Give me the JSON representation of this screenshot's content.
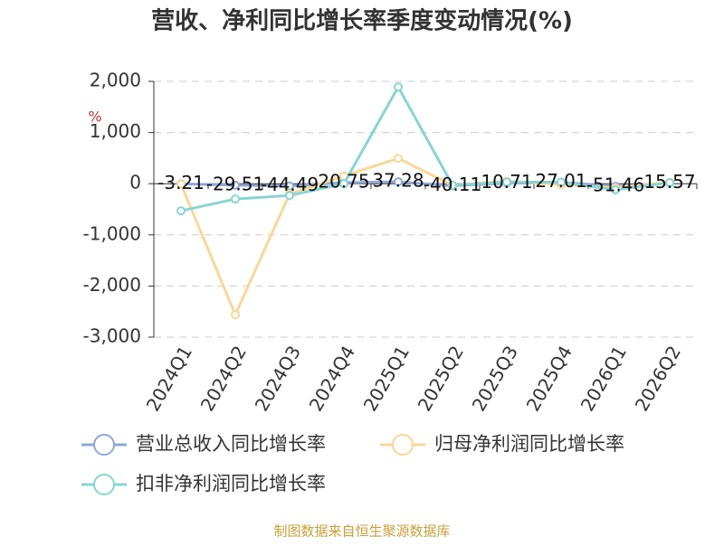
{
  "chart_data": {
    "type": "line",
    "title": "营收、净利同比增长率季度变动情况(%)",
    "y_unit": "%",
    "categories": [
      "2024Q1",
      "2024Q2",
      "2024Q3",
      "2024Q4",
      "2025Q1",
      "2025Q2",
      "2025Q3",
      "2025Q4",
      "2026Q1",
      "2026Q2"
    ],
    "series": [
      {
        "name": "营业总收入同比增长率",
        "color": "#8ea8d8",
        "show_labels": true,
        "values": [
          -3.21,
          -29.51,
          -44.49,
          20.75,
          37.28,
          -40.11,
          10.71,
          27.01,
          -51.46,
          15.57
        ]
      },
      {
        "name": "归母净利润同比增长率",
        "color": "#f8d79a",
        "show_labels": false,
        "values": [
          -10,
          -2560,
          -200,
          150,
          495,
          -30,
          50,
          -20,
          -80,
          30
        ]
      },
      {
        "name": "扣非净利润同比增长率",
        "color": "#88d4d3",
        "show_labels": false,
        "values": [
          -530,
          -300,
          -230,
          0,
          1890,
          -30,
          30,
          30,
          -120,
          20
        ]
      }
    ],
    "ylim": [
      -3000,
      2000
    ],
    "yticks": [
      {
        "value": -3000,
        "label": "-3,000"
      },
      {
        "value": -2000,
        "label": "-2,000"
      },
      {
        "value": -1000,
        "label": "-1,000"
      },
      0,
      {
        "value": 1000,
        "label": "1,000"
      },
      {
        "value": 2000,
        "label": "2,000"
      }
    ],
    "grid": true,
    "source": "制图数据来自恒生聚源数据库"
  }
}
